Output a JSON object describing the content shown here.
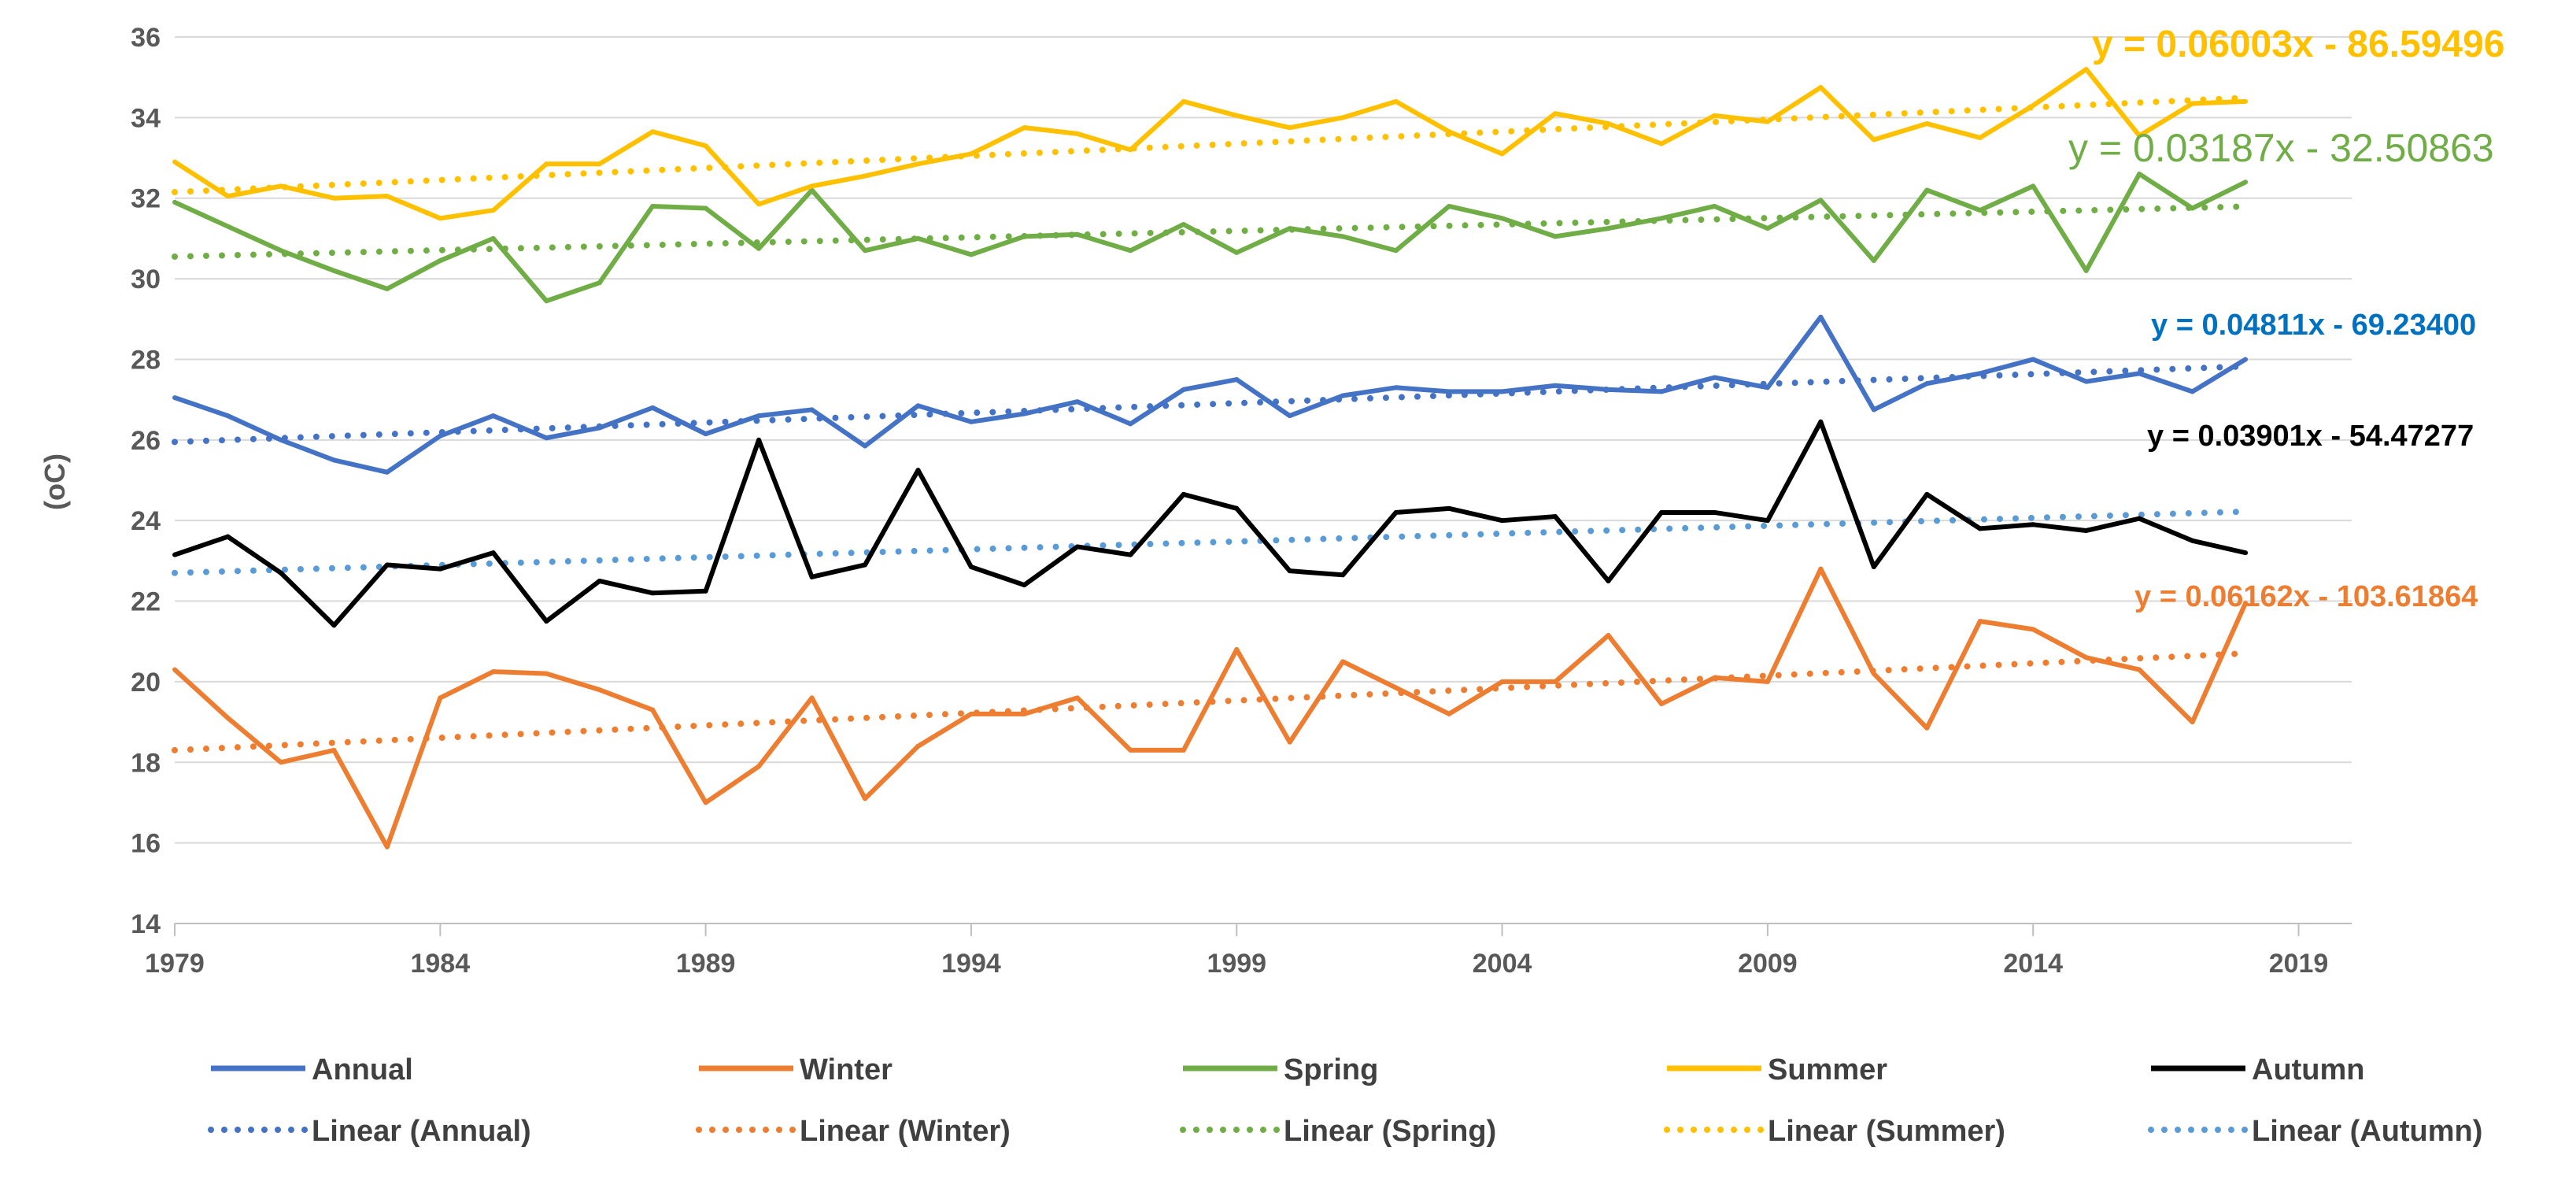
{
  "chart_data": {
    "type": "line",
    "title": "",
    "xlabel": "",
    "ylabel": "(oC)",
    "xlim": [
      1979,
      2020
    ],
    "ylim": [
      14,
      36
    ],
    "x_ticks": [
      "1979",
      "1984",
      "1989",
      "1994",
      "1999",
      "2004",
      "2009",
      "2014",
      "2019"
    ],
    "y_ticks": [
      "14",
      "16",
      "18",
      "20",
      "22",
      "24",
      "26",
      "28",
      "30",
      "32",
      "34",
      "36"
    ],
    "grid": "horizontal",
    "legend_position": "bottom",
    "x": [
      1979,
      1980,
      1981,
      1982,
      1983,
      1984,
      1985,
      1986,
      1987,
      1988,
      1989,
      1990,
      1991,
      1992,
      1993,
      1994,
      1995,
      1996,
      1997,
      1998,
      1999,
      2000,
      2001,
      2002,
      2003,
      2004,
      2005,
      2006,
      2007,
      2008,
      2009,
      2010,
      2011,
      2012,
      2013,
      2014,
      2015,
      2016,
      2017,
      2018
    ],
    "series": [
      {
        "name": "Annual",
        "color": "#4472C4",
        "values": [
          27.05,
          26.6,
          26.0,
          25.5,
          25.2,
          26.1,
          26.6,
          26.05,
          26.3,
          26.8,
          26.15,
          26.6,
          26.75,
          25.85,
          26.85,
          26.45,
          26.65,
          26.95,
          26.4,
          27.25,
          27.5,
          26.6,
          27.1,
          27.3,
          27.2,
          27.2,
          27.35,
          27.25,
          27.2,
          27.55,
          27.3,
          29.05,
          26.75,
          27.4,
          27.65,
          28.0,
          27.45,
          27.65,
          27.2,
          28.0
        ]
      },
      {
        "name": "Winter",
        "color": "#ED7D31",
        "values": [
          20.3,
          19.1,
          18.0,
          18.3,
          15.9,
          19.6,
          20.25,
          20.2,
          19.8,
          19.3,
          17.0,
          17.9,
          19.6,
          17.1,
          18.4,
          19.2,
          19.2,
          19.6,
          18.3,
          18.3,
          20.8,
          18.5,
          20.5,
          19.85,
          19.2,
          20.0,
          20.0,
          21.15,
          19.45,
          20.1,
          20.0,
          22.8,
          20.2,
          18.85,
          21.5,
          21.3,
          20.6,
          20.3,
          19.0,
          21.95
        ]
      },
      {
        "name": "Spring",
        "color": "#70AD47",
        "values": [
          31.9,
          31.3,
          30.7,
          30.2,
          29.75,
          30.45,
          31.0,
          29.45,
          29.9,
          31.8,
          31.75,
          30.75,
          32.2,
          30.7,
          31.0,
          30.6,
          31.05,
          31.1,
          30.7,
          31.35,
          30.65,
          31.25,
          31.05,
          30.7,
          31.8,
          31.5,
          31.05,
          31.25,
          31.5,
          31.8,
          31.25,
          31.95,
          30.45,
          32.2,
          31.7,
          32.3,
          30.2,
          32.6,
          31.75,
          32.4
        ]
      },
      {
        "name": "Summer",
        "color": "#FFC000",
        "values": [
          32.9,
          32.05,
          32.3,
          32.0,
          32.05,
          31.5,
          31.7,
          32.85,
          32.85,
          33.65,
          33.3,
          31.85,
          32.3,
          32.55,
          32.85,
          33.1,
          33.75,
          33.6,
          33.2,
          34.4,
          34.05,
          33.75,
          34.0,
          34.4,
          33.65,
          33.1,
          34.1,
          33.85,
          33.35,
          34.05,
          33.9,
          34.75,
          33.45,
          33.85,
          33.5,
          34.3,
          35.2,
          33.55,
          34.35,
          34.4
        ]
      },
      {
        "name": "Autumn",
        "color": "#000000",
        "values": [
          23.15,
          23.6,
          22.7,
          21.4,
          22.9,
          22.8,
          23.2,
          21.5,
          22.5,
          22.2,
          22.25,
          26.0,
          22.6,
          22.9,
          25.25,
          22.85,
          22.4,
          23.35,
          23.15,
          24.65,
          24.3,
          22.75,
          22.65,
          24.2,
          24.3,
          24.0,
          24.1,
          22.5,
          24.2,
          24.2,
          24.0,
          26.45,
          22.85,
          24.65,
          23.8,
          23.9,
          23.75,
          24.05,
          23.5,
          23.2
        ]
      }
    ],
    "trendlines": [
      {
        "name": "Linear (Annual)",
        "color": "#4472C4",
        "slope": 0.04811,
        "start": 25.95,
        "equation": "y = 0.04811x - 69.23400"
      },
      {
        "name": "Linear (Winter)",
        "color": "#ED7D31",
        "slope": 0.06162,
        "start": 18.3,
        "equation": "y = 0.06162x - 103.61864"
      },
      {
        "name": "Linear (Spring)",
        "color": "#70AD47",
        "slope": 0.03187,
        "start": 30.55,
        "equation": "y = 0.03187x - 32.50863"
      },
      {
        "name": "Linear (Summer)",
        "color": "#FFC000",
        "slope": 0.06003,
        "start": 32.15,
        "equation": "y = 0.06003x - 86.59496"
      },
      {
        "name": "Linear (Autumn)",
        "color": "#5B9BD5",
        "slope": 0.03901,
        "start": 22.7,
        "equation": "y = 0.03901x - 54.47277"
      }
    ],
    "equations": [
      {
        "text": "y = 0.06003x - 86.59496",
        "color": "#FFC000"
      },
      {
        "text": "y = 0.03187x - 32.50863",
        "color": "#70AD47"
      },
      {
        "text": "y = 0.04811x - 69.23400",
        "color": "#0070C0"
      },
      {
        "text": "y = 0.03901x - 54.47277",
        "color": "#000000"
      },
      {
        "text": "y = 0.06162x - 103.61864",
        "color": "#ED7D31"
      }
    ]
  }
}
